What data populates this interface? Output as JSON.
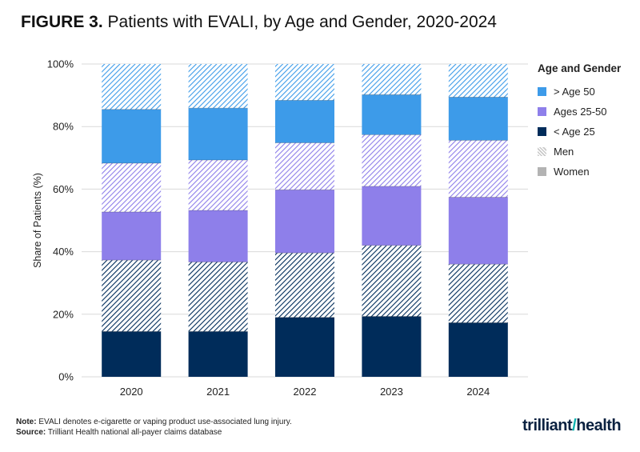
{
  "title": {
    "prefix": "FIGURE 3.",
    "text": "Patients with EVALI, by Age and Gender, 2020-2024"
  },
  "legend": {
    "title": "Age and Gender",
    "items": [
      "> Age 50",
      "Ages 25-50",
      "< Age 25",
      "Men",
      "Women"
    ]
  },
  "footer": {
    "note_label": "Note:",
    "note_text": "EVALI denotes e-cigarette or vaping product use-associated lung injury.",
    "source_label": "Source:",
    "source_text": "Trilliant Health national all-payer claims database"
  },
  "logo": {
    "text_left": "trilliant",
    "text_right": "health"
  },
  "colors": {
    "old": "#3d9be9",
    "mid": "#8e7fea",
    "young": "#002c5a",
    "men": "#c9c9c9",
    "women": "#b3b3b3",
    "grid": "#d9d9d9"
  },
  "chart_data": {
    "type": "bar",
    "stacked": true,
    "categories": [
      "2020",
      "2021",
      "2022",
      "2023",
      "2024"
    ],
    "ylabel": "Share of Patients (%)",
    "xlabel": "",
    "ylim": [
      0,
      100
    ],
    "yticks": [
      0,
      20,
      40,
      60,
      80,
      100
    ],
    "ytick_labels": [
      "0%",
      "20%",
      "40%",
      "60%",
      "80%",
      "100%"
    ],
    "grid": true,
    "legend_position": "right",
    "segments_order_bottom_to_top": [
      "< Age 25 Women",
      "< Age 25 Men",
      "Ages 25-50 Women",
      "Ages 25-50 Men",
      "> Age 50 Women",
      "> Age 50 Men"
    ],
    "series": [
      {
        "name": "< Age 25",
        "gender": "Women",
        "values": [
          14.5,
          14.5,
          19.0,
          19.3,
          17.3
        ]
      },
      {
        "name": "< Age 25",
        "gender": "Men",
        "values": [
          22.8,
          22.2,
          20.6,
          22.7,
          18.7
        ]
      },
      {
        "name": "Ages 25-50",
        "gender": "Women",
        "values": [
          15.4,
          16.5,
          20.2,
          18.9,
          21.4
        ]
      },
      {
        "name": "Ages 25-50",
        "gender": "Men",
        "values": [
          15.6,
          16.1,
          15.0,
          16.5,
          18.2
        ]
      },
      {
        "name": "> Age 50",
        "gender": "Women",
        "values": [
          17.2,
          16.6,
          13.6,
          12.8,
          13.8
        ]
      },
      {
        "name": "> Age 50",
        "gender": "Men",
        "values": [
          14.5,
          14.1,
          11.6,
          9.8,
          10.6
        ]
      }
    ]
  }
}
